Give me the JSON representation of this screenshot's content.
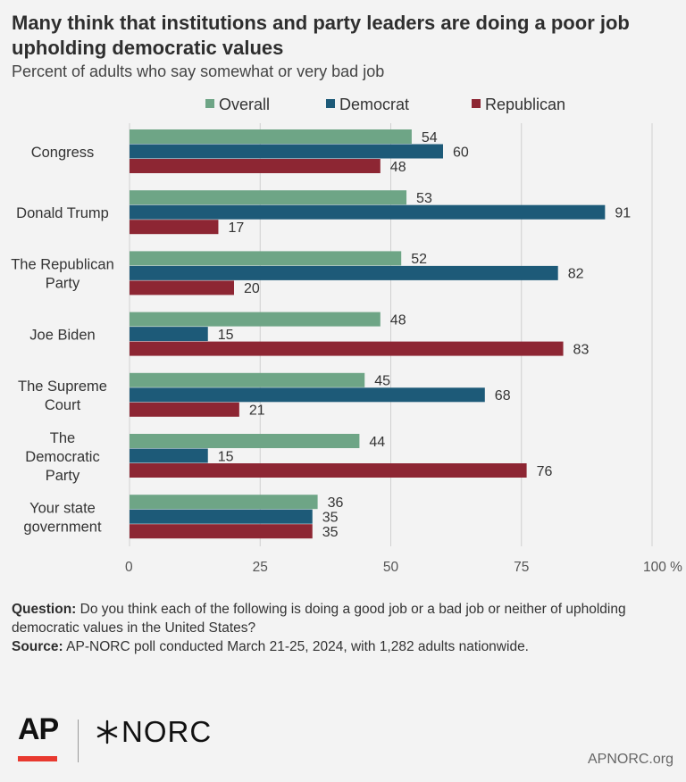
{
  "header": {
    "title": "Many think that institutions and party leaders are doing a poor job upholding democratic values",
    "subtitle": "Percent of adults who say somewhat or very bad job"
  },
  "chart_data": {
    "type": "bar",
    "orientation": "horizontal",
    "categories": [
      [
        "Congress"
      ],
      [
        "Donald Trump"
      ],
      [
        "The Republican",
        "Party"
      ],
      [
        "Joe Biden"
      ],
      [
        "The Supreme",
        "Court"
      ],
      [
        "The",
        "Democratic",
        "Party"
      ],
      [
        "Your state",
        "government"
      ]
    ],
    "series": [
      {
        "name": "Overall",
        "color": "#6ea586",
        "values": [
          54,
          53,
          52,
          48,
          45,
          44,
          36
        ]
      },
      {
        "name": "Democrat",
        "color": "#1d5a78",
        "values": [
          60,
          91,
          82,
          15,
          68,
          15,
          35
        ]
      },
      {
        "name": "Republican",
        "color": "#8d2633",
        "values": [
          48,
          17,
          20,
          83,
          21,
          76,
          35
        ]
      }
    ],
    "xlim": [
      0,
      100
    ],
    "xticks": [
      "0",
      "25",
      "50",
      "75",
      "100 %"
    ],
    "xtick_values": [
      0,
      25,
      50,
      75,
      100
    ],
    "grid": true,
    "legend_position": "top"
  },
  "notes": {
    "question_label": "Question:",
    "question_text": "Do you think each of the following is doing a good job or a bad job or neither of upholding democratic values in the United States?",
    "source_label": "Source:",
    "source_text": "AP-NORC poll conducted March 21-25, 2024, with 1,282 adults nationwide."
  },
  "footer": {
    "ap_logo": "AP",
    "norc_logo": "NORC",
    "website": "APNORC.org"
  }
}
